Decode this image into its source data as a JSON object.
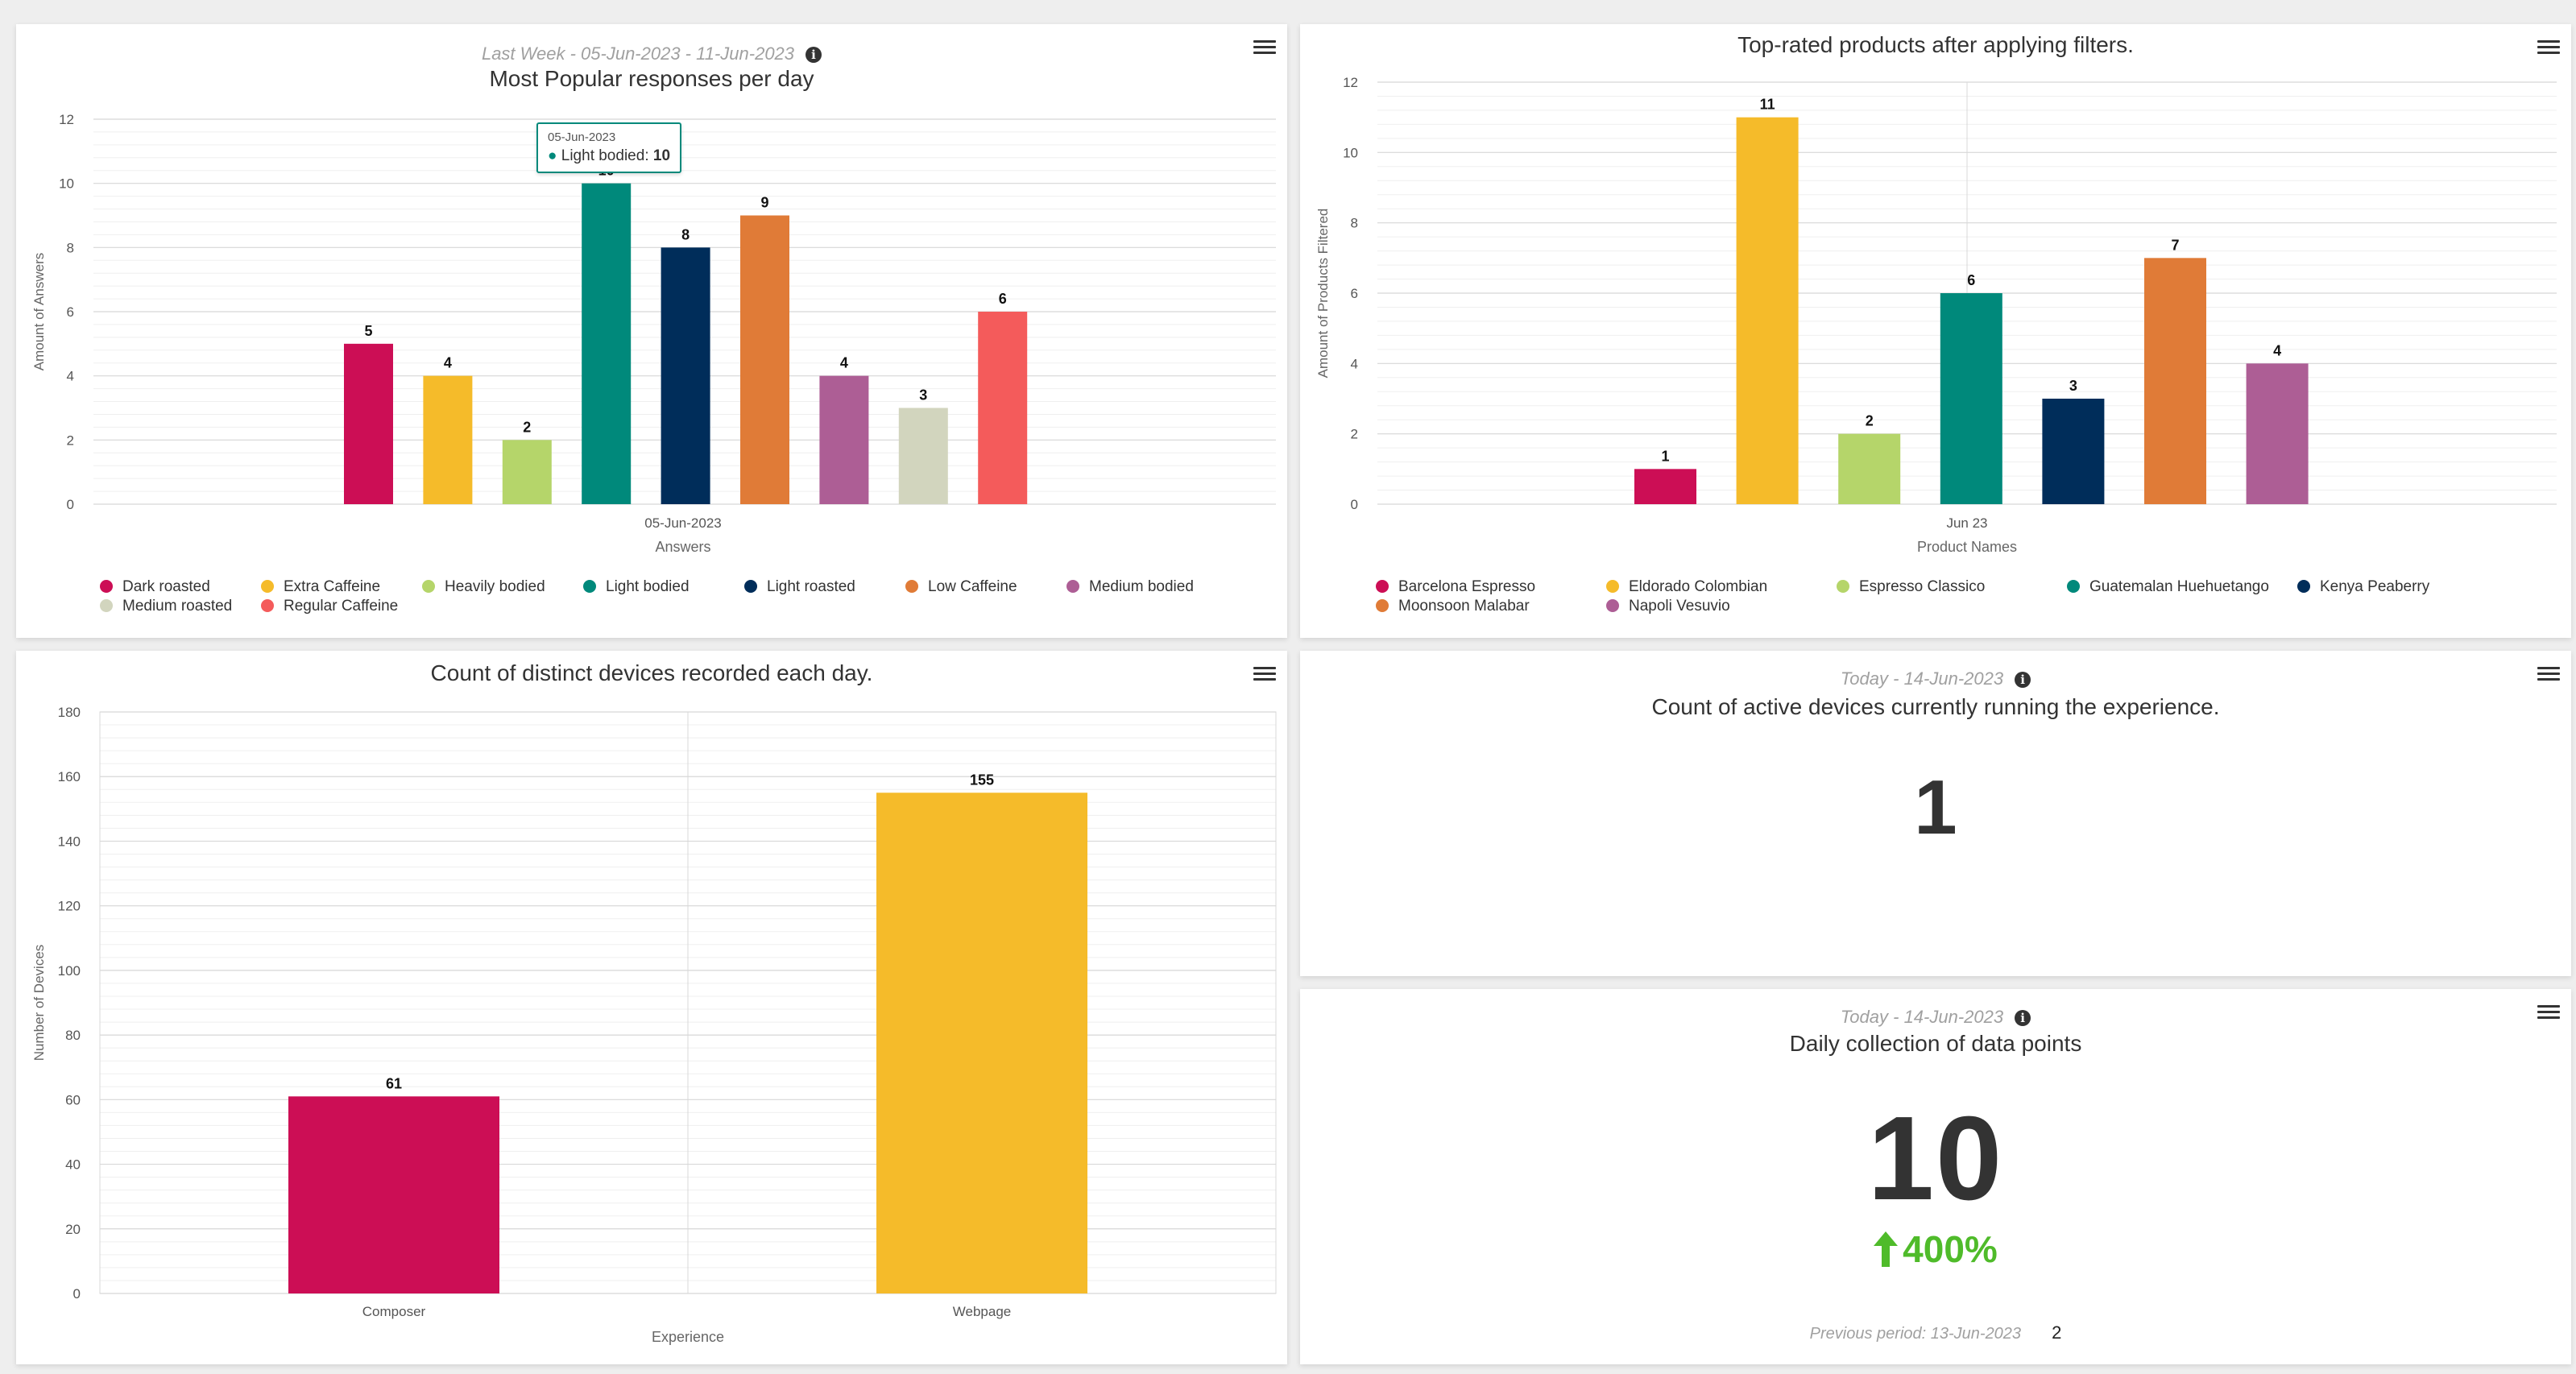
{
  "panels": {
    "popular": {
      "subtitle": "Last Week - 05-Jun-2023 - 11-Jun-2023",
      "title": "Most Popular responses per day",
      "tooltip": {
        "date": "05-Jun-2023",
        "series": "Light bodied",
        "value": "10"
      }
    },
    "toprated": {
      "title": "Top-rated products after applying filters."
    },
    "devices": {
      "title": "Count of distinct devices recorded each day."
    },
    "active": {
      "subtitle": "Today - 14-Jun-2023",
      "title": "Count of active devices currently running the experience.",
      "value": "1"
    },
    "datapoints": {
      "subtitle": "Today - 14-Jun-2023",
      "title": "Daily collection of data points",
      "value": "10",
      "change": "400%",
      "previous_label": "Previous period: 13-Jun-2023",
      "previous_value": "2"
    }
  },
  "chart_data": [
    {
      "type": "bar",
      "title": "Most Popular responses per day",
      "xlabel": "Answers",
      "ylabel": "Amount of Answers",
      "categories": [
        "05-Jun-2023"
      ],
      "ylim": [
        0,
        12
      ],
      "yticks": [
        "0",
        "2",
        "4",
        "6",
        "8",
        "10",
        "12"
      ],
      "grid": true,
      "legend": "bottom",
      "series": [
        {
          "name": "Dark roasted",
          "value": 5,
          "color": "#cc0e55"
        },
        {
          "name": "Extra Caffeine",
          "value": 4,
          "color": "#f5bb2a"
        },
        {
          "name": "Heavily bodied",
          "value": 2,
          "color": "#b5d56a"
        },
        {
          "name": "Light bodied",
          "value": 10,
          "color": "#00897b"
        },
        {
          "name": "Light roasted",
          "value": 8,
          "color": "#002d5a"
        },
        {
          "name": "Low Caffeine",
          "value": 9,
          "color": "#e07b37"
        },
        {
          "name": "Medium bodied",
          "value": 4,
          "color": "#ad5e95"
        },
        {
          "name": "Medium roasted",
          "value": 3,
          "color": "#d2d5be"
        },
        {
          "name": "Regular Caffeine",
          "value": 6,
          "color": "#f45b5b"
        }
      ]
    },
    {
      "type": "bar",
      "title": "Top-rated products after applying filters.",
      "xlabel": "Product Names",
      "ylabel": "Amount of Products Filtered",
      "categories": [
        "Jun 23"
      ],
      "ylim": [
        0,
        12
      ],
      "yticks": [
        "0",
        "2",
        "4",
        "6",
        "8",
        "10",
        "12"
      ],
      "grid": true,
      "legend": "bottom",
      "series": [
        {
          "name": "Barcelona Espresso",
          "value": 1,
          "color": "#cc0e55"
        },
        {
          "name": "Eldorado Colombian",
          "value": 11,
          "color": "#f5bb2a"
        },
        {
          "name": "Espresso Classico",
          "value": 2,
          "color": "#b5d56a"
        },
        {
          "name": "Guatemalan Huehuetango",
          "value": 6,
          "color": "#00897b"
        },
        {
          "name": "Kenya Peaberry",
          "value": 3,
          "color": "#002d5a"
        },
        {
          "name": "Moonsoon Malabar",
          "value": 7,
          "color": "#e07b37"
        },
        {
          "name": "Napoli Vesuvio",
          "value": 4,
          "color": "#ad5e95"
        }
      ]
    },
    {
      "type": "bar",
      "title": "Count of distinct devices recorded each day.",
      "xlabel": "Experience",
      "ylabel": "Number of Devices",
      "categories": [
        "Composer",
        "Webpage"
      ],
      "values": [
        61,
        155
      ],
      "colors": [
        "#cc0e55",
        "#f5bb2a"
      ],
      "ylim": [
        0,
        180
      ],
      "yticks": [
        "0",
        "20",
        "40",
        "60",
        "80",
        "100",
        "120",
        "140",
        "160",
        "180"
      ],
      "grid": true
    }
  ]
}
